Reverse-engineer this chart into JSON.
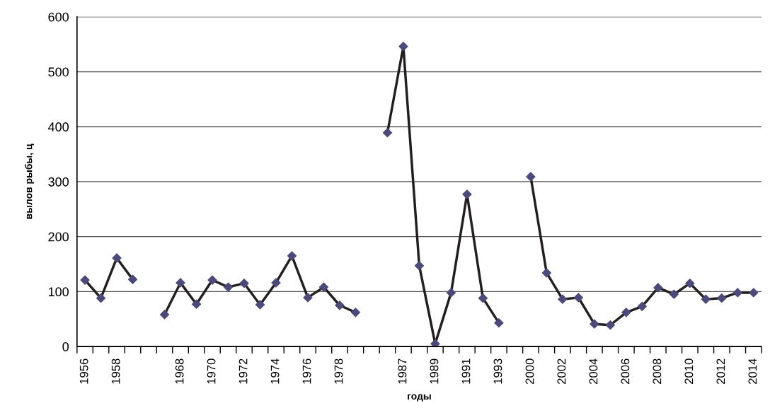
{
  "chart_data": {
    "type": "line",
    "xlabel": "годы",
    "ylabel": "вылов рыбы, ц",
    "categories": [
      "1956",
      null,
      "1958",
      null,
      null,
      null,
      "1968",
      null,
      "1970",
      null,
      "1972",
      null,
      "1974",
      null,
      "1976",
      null,
      "1978",
      null,
      null,
      null,
      "1987",
      null,
      "1989",
      null,
      "1991",
      null,
      "1993",
      null,
      "2000",
      null,
      "2002",
      null,
      "2004",
      null,
      "2006",
      null,
      "2008",
      null,
      "2010",
      null,
      "2012",
      null,
      "2014"
    ],
    "series": [
      {
        "color": "#231f20",
        "values": [
          121,
          88,
          161,
          122,
          null,
          58,
          116,
          77,
          121,
          108,
          115,
          76,
          116,
          165,
          89,
          108,
          75,
          62,
          null,
          389,
          546,
          147,
          5,
          98,
          277,
          88,
          43,
          null,
          309,
          134,
          86,
          89,
          41,
          39,
          62,
          73,
          107,
          95,
          115,
          86,
          88,
          98,
          98
        ]
      }
    ],
    "ylim": [
      0,
      600
    ],
    "yticks": [
      0,
      100,
      200,
      300,
      400,
      500,
      600
    ],
    "grid": "y",
    "marker": "diamond",
    "line_style": "solid"
  }
}
